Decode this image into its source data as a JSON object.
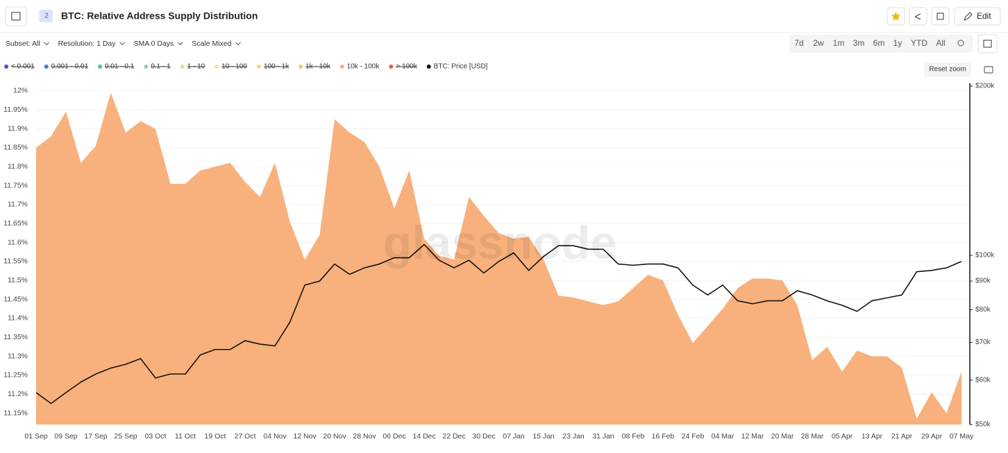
{
  "ui": {
    "title": "BTC: Relative Address Supply Distribution",
    "badge": "2",
    "edit": "Edit",
    "controls": [
      "Subset: All",
      "Resolution: 1 Day",
      "SMA 0 Days",
      "Scale Mixed"
    ],
    "ranges": [
      "7d",
      "2w",
      "1m",
      "3m",
      "6m",
      "1y",
      "YTD",
      "All"
    ],
    "reset_zoom": "Reset zoom",
    "watermark": "glassnode"
  },
  "chart_data": {
    "type": "area_line",
    "categories": [
      "01 Sep",
      null,
      "09 Sep",
      null,
      "17 Sep",
      null,
      "25 Sep",
      null,
      "03 Oct",
      null,
      "11 Oct",
      null,
      "19 Oct",
      null,
      "27 Oct",
      null,
      "04 Nov",
      null,
      "12 Nov",
      null,
      "20 Nov",
      null,
      "28 Nov",
      null,
      "06 Dec",
      null,
      "14 Dec",
      null,
      "22 Dec",
      null,
      "30 Dec",
      null,
      "07 Jan",
      null,
      "15 Jan",
      null,
      "23 Jan",
      null,
      "31 Jan",
      null,
      "08 Feb",
      null,
      "16 Feb",
      null,
      "24 Feb",
      null,
      "04 Mar",
      null,
      "12 Mar",
      null,
      "20 Mar",
      null,
      "28 Mar",
      null,
      "05 Apr",
      null,
      "13 Apr",
      null,
      "21 Apr",
      null,
      "29 Apr",
      null,
      "07 May"
    ],
    "series": [
      {
        "name": "< 0.001",
        "color": "#5b4bb7",
        "hidden": true
      },
      {
        "name": "0.001 - 0.01",
        "color": "#3e7dc8",
        "hidden": true
      },
      {
        "name": "0.01 - 0.1",
        "color": "#4cc1a0",
        "hidden": true
      },
      {
        "name": "0.1 - 1",
        "color": "#8ed3a8",
        "hidden": true
      },
      {
        "name": "1 - 10",
        "color": "#dde68a",
        "hidden": true
      },
      {
        "name": "10 - 100",
        "color": "#f2e49a",
        "hidden": true
      },
      {
        "name": "100 - 1k",
        "color": "#f6d77e",
        "hidden": true
      },
      {
        "name": "1k - 10k",
        "color": "#f5c36e",
        "hidden": true
      },
      {
        "name": "10k - 100k",
        "color": "#f8b17c",
        "kind": "area",
        "values": [
          11.85,
          11.88,
          11.945,
          11.81,
          11.855,
          11.995,
          11.89,
          11.92,
          11.9,
          11.755,
          11.755,
          11.79,
          11.8,
          11.81,
          11.76,
          11.72,
          11.81,
          11.655,
          11.555,
          11.62,
          11.925,
          11.89,
          11.865,
          11.8,
          11.69,
          11.79,
          11.61,
          11.565,
          11.555,
          11.72,
          11.67,
          11.625,
          11.61,
          11.615,
          11.555,
          11.46,
          11.455,
          11.445,
          11.435,
          11.445,
          11.48,
          11.515,
          11.5,
          11.41,
          11.335,
          11.38,
          11.425,
          11.48,
          11.505,
          11.505,
          11.5,
          11.435,
          11.29,
          11.325,
          11.26,
          11.315,
          11.3,
          11.3,
          11.27,
          11.135,
          11.205,
          11.15,
          11.26
        ]
      },
      {
        "name": "> 100k",
        "color": "#e8603c",
        "hidden": true
      },
      {
        "name": "BTC: Price [USD]",
        "color": "#111111",
        "kind": "line",
        "axis": "y2",
        "values": [
          57000,
          54500,
          57000,
          59500,
          61500,
          63000,
          64000,
          65500,
          60500,
          61500,
          61500,
          66500,
          68000,
          68000,
          70500,
          69500,
          69000,
          76000,
          88500,
          90000,
          96500,
          92500,
          95000,
          96500,
          99000,
          99000,
          104500,
          98000,
          95000,
          98000,
          93000,
          97500,
          101000,
          94000,
          99500,
          104000,
          104000,
          102500,
          102500,
          96500,
          96000,
          96500,
          96500,
          95000,
          88500,
          85000,
          88500,
          83000,
          82000,
          83000,
          83000,
          86500,
          85000,
          83000,
          81500,
          79500,
          83000,
          84000,
          85000,
          93500,
          94000,
          95000,
          97500
        ]
      }
    ],
    "ylim": [
      11.12,
      12.02
    ],
    "yticks": [
      {
        "value": 12,
        "label": "12%"
      },
      {
        "value": 11.95,
        "label": "11.95%"
      },
      {
        "value": 11.9,
        "label": "11.9%"
      },
      {
        "value": 11.85,
        "label": "11.85%"
      },
      {
        "value": 11.8,
        "label": "11.8%"
      },
      {
        "value": 11.75,
        "label": "11.75%"
      },
      {
        "value": 11.7,
        "label": "11.7%"
      },
      {
        "value": 11.65,
        "label": "11.65%"
      },
      {
        "value": 11.6,
        "label": "11.6%"
      },
      {
        "value": 11.55,
        "label": "11.55%"
      },
      {
        "value": 11.5,
        "label": "11.5%"
      },
      {
        "value": 11.45,
        "label": "11.45%"
      },
      {
        "value": 11.4,
        "label": "11.4%"
      },
      {
        "value": 11.35,
        "label": "11.35%"
      },
      {
        "value": 11.3,
        "label": "11.3%"
      },
      {
        "value": 11.25,
        "label": "11.25%"
      },
      {
        "value": 11.2,
        "label": "11.2%"
      },
      {
        "value": 11.15,
        "label": "11.15%"
      }
    ],
    "y2lim": [
      50000,
      200000
    ],
    "y2scale": "log",
    "y2ticks": [
      {
        "value": 200000,
        "label": "$200k"
      },
      {
        "value": 100000,
        "label": "$100k"
      },
      {
        "value": 90000,
        "label": "$90k"
      },
      {
        "value": 80000,
        "label": "$80k"
      },
      {
        "value": 70000,
        "label": "$70k"
      },
      {
        "value": 60000,
        "label": "$60k"
      },
      {
        "value": 50000,
        "label": "$50k"
      }
    ],
    "grid": true
  }
}
